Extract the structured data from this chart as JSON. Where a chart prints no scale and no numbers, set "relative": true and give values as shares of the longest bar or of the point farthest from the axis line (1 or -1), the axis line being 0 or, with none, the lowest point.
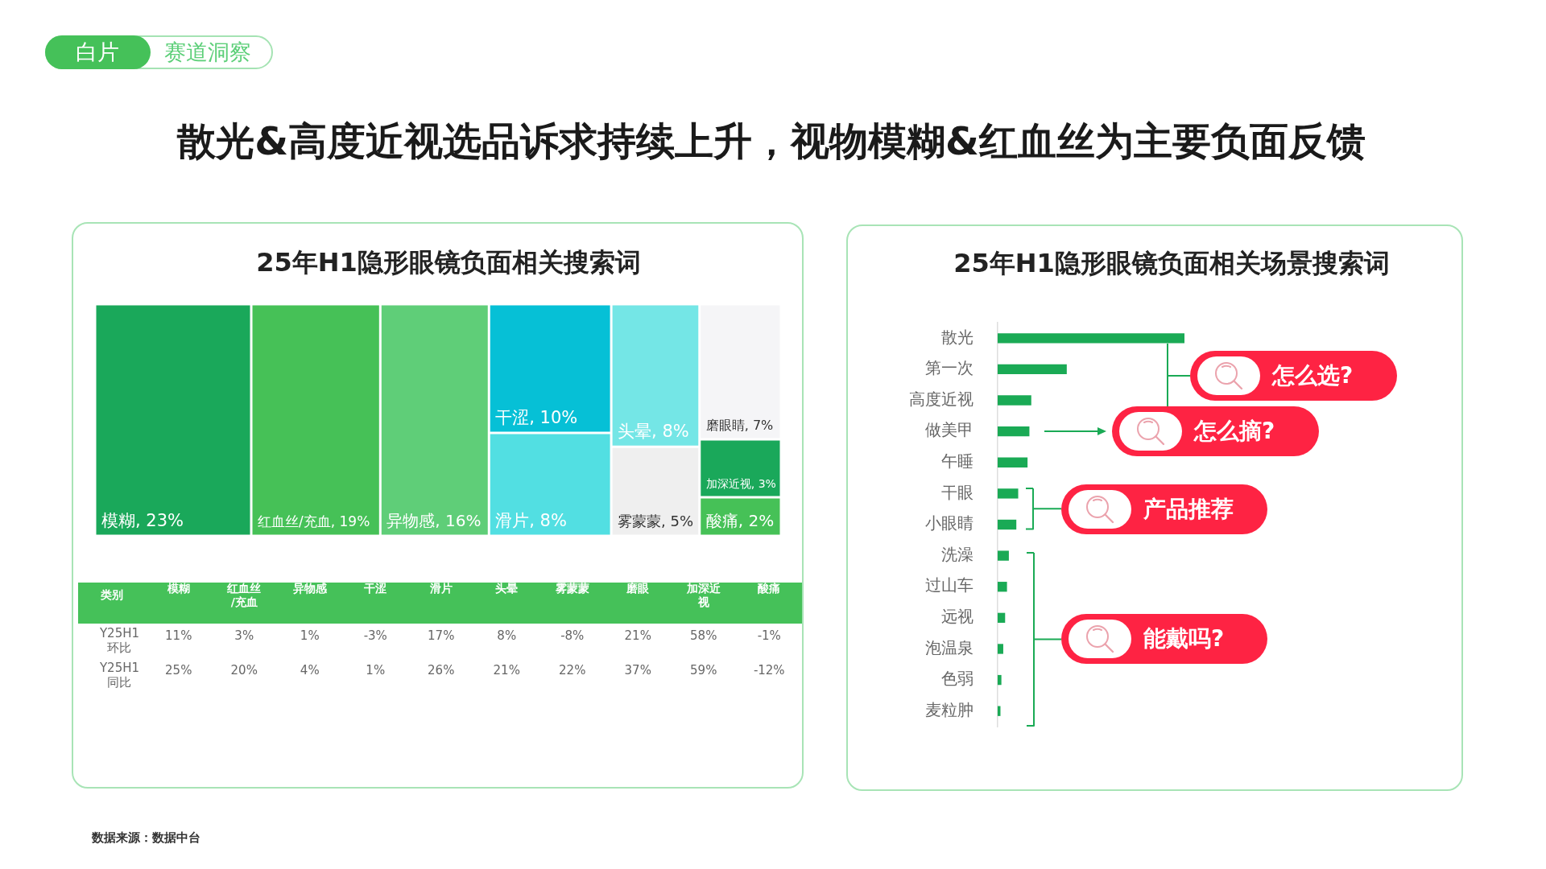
{
  "chart_data": [
    {
      "type": "other",
      "title": "散光&高度近视选品诉求持续上升，视物模糊&红血丝为主要负面反馈",
      "subtitle": "25年H1隐形眼镜负面相关搜索词",
      "categories": [
        "模糊",
        "红血丝/充血",
        "异物感",
        "干涩",
        "滑片",
        "头晕",
        "雾蒙蒙",
        "磨眼睛",
        "加深近视",
        "酸痛"
      ],
      "values": [
        23,
        19,
        16,
        10,
        8,
        8,
        5,
        7,
        3,
        2
      ],
      "value_labels": [
        ", 23%",
        ", 19%",
        ", 16%",
        ", 10%",
        ", 8%",
        ", 8%",
        ", 5%",
        ", 7%",
        ", 3%",
        ", 2%"
      ],
      "colors": [
        "#1aa85a",
        "#46c157",
        "#5fce78",
        "#06c0d6",
        "#52dfe2",
        "#74e6e6",
        "#efefef",
        "#f5f5f7",
        "#1aa85a",
        "#46c157"
      ],
      "annotations": [
        "白片",
        "赛道洞察",
        "数据来源：数据中台"
      ]
    },
    {
      "type": "heatmap",
      "xlabel": "类别",
      "categories": [
        "模糊",
        "红血丝/充血",
        "异物感",
        "干涩",
        "滑片",
        "头晕",
        "雾蒙蒙",
        "磨眼",
        "加深近视",
        "酸痛"
      ],
      "y_categories": [
        "Y25H1环比",
        "Y25H1同比"
      ],
      "cells": [
        [
          11,
          3,
          1,
          -3,
          17,
          8,
          -8,
          21,
          58,
          -1
        ],
        [
          25,
          20,
          4,
          1,
          26,
          21,
          22,
          37,
          59,
          -12
        ]
      ],
      "cell_labels": [
        [
          "11%",
          "3%",
          "1%",
          "-3%",
          "17%",
          "8%",
          "-8%",
          "21%",
          "58%",
          "-1%"
        ],
        [
          "25%",
          "20%",
          "4%",
          "1%",
          "26%",
          "21%",
          "22%",
          "37%",
          "59%",
          "-12%"
        ]
      ]
    },
    {
      "type": "bar",
      "orientation": "horizontal",
      "relative": true,
      "title": "25年H1隐形眼镜负面相关场景搜索词",
      "categories": [
        "散光",
        "第一次",
        "高度近视",
        "做美甲",
        "午睡",
        "干眼",
        "小眼睛",
        "洗澡",
        "过山车",
        "远视",
        "泡温泉",
        "色弱",
        "麦粒肿"
      ],
      "values": [
        1,
        0.37,
        0.18,
        0.17,
        0.16,
        0.11,
        0.1,
        0.06,
        0.05,
        0.04,
        0.03,
        0.02,
        0.015
      ],
      "color": "#1aaa55",
      "annotations": [
        "怎么选?",
        "怎么摘?",
        "产品推荐",
        "能戴吗?"
      ]
    }
  ]
}
